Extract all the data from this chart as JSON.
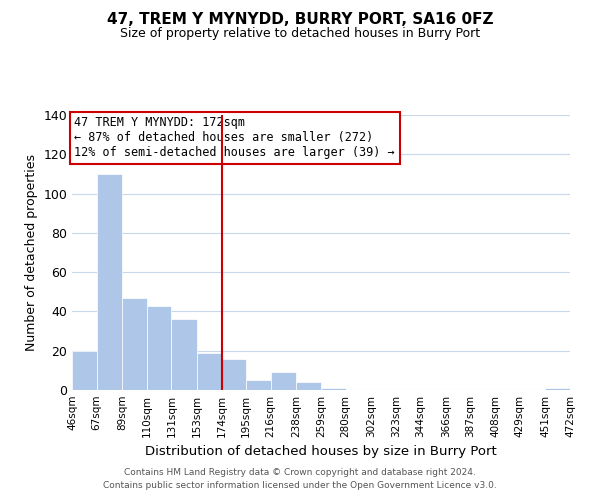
{
  "title": "47, TREM Y MYNYDD, BURRY PORT, SA16 0FZ",
  "subtitle": "Size of property relative to detached houses in Burry Port",
  "xlabel": "Distribution of detached houses by size in Burry Port",
  "ylabel": "Number of detached properties",
  "bar_edges": [
    46,
    67,
    89,
    110,
    131,
    153,
    174,
    195,
    216,
    238,
    259,
    280,
    302,
    323,
    344,
    366,
    387,
    408,
    429,
    451,
    472
  ],
  "bar_heights": [
    20,
    110,
    47,
    43,
    36,
    19,
    16,
    5,
    9,
    4,
    1,
    0,
    0,
    0,
    0,
    0,
    0,
    0,
    0,
    1
  ],
  "bar_color": "#aec6e8",
  "vline_x": 174,
  "vline_color": "#cc0000",
  "ylim": [
    0,
    140
  ],
  "yticks": [
    0,
    20,
    40,
    60,
    80,
    100,
    120,
    140
  ],
  "xtick_labels": [
    "46sqm",
    "67sqm",
    "89sqm",
    "110sqm",
    "131sqm",
    "153sqm",
    "174sqm",
    "195sqm",
    "216sqm",
    "238sqm",
    "259sqm",
    "280sqm",
    "302sqm",
    "323sqm",
    "344sqm",
    "366sqm",
    "387sqm",
    "408sqm",
    "429sqm",
    "451sqm",
    "472sqm"
  ],
  "annotation_title": "47 TREM Y MYNYDD: 172sqm",
  "annotation_line1": "← 87% of detached houses are smaller (272)",
  "annotation_line2": "12% of semi-detached houses are larger (39) →",
  "annotation_box_color": "#ffffff",
  "annotation_box_edge_color": "#cc0000",
  "footer_line1": "Contains HM Land Registry data © Crown copyright and database right 2024.",
  "footer_line2": "Contains public sector information licensed under the Open Government Licence v3.0.",
  "background_color": "#ffffff",
  "grid_color": "#c8d8ea"
}
